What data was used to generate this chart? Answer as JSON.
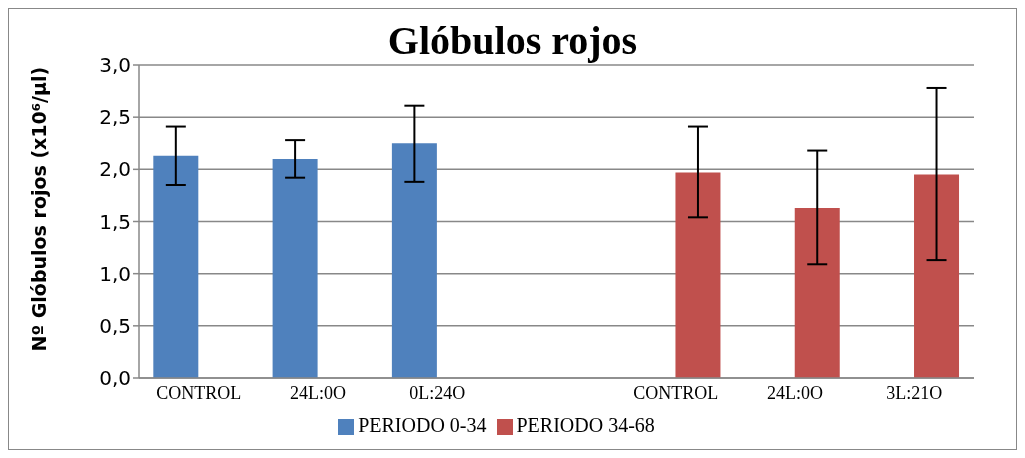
{
  "chart_data": {
    "type": "bar",
    "title": "Glóbulos rojos",
    "ylabel": "Nº Glóbulos rojos (x10⁶/µl)",
    "categories": [
      "CONTROL",
      "24L:0O",
      "0L:24O",
      null,
      "CONTROL",
      "24L:0O",
      "3L:21O"
    ],
    "series": [
      {
        "name": "PERIODO 0-34",
        "color": "#4f81bd",
        "values": [
          2.13,
          2.1,
          2.25,
          null,
          null,
          null,
          null
        ],
        "errors": [
          [
            1.85,
            2.41
          ],
          [
            1.92,
            2.28
          ],
          [
            1.88,
            2.61
          ],
          null,
          null,
          null,
          null
        ]
      },
      {
        "name": "PERIODO 34-68",
        "color": "#c0504d",
        "values": [
          null,
          null,
          null,
          null,
          1.97,
          1.63,
          1.95
        ],
        "errors": [
          null,
          null,
          null,
          null,
          [
            1.54,
            2.41
          ],
          [
            1.09,
            2.18
          ],
          [
            1.13,
            2.78
          ]
        ]
      }
    ],
    "ylim": [
      0,
      3
    ],
    "yticks": [
      {
        "value": 0,
        "label": "0,0"
      },
      {
        "value": 0.5,
        "label": "0,5"
      },
      {
        "value": 1,
        "label": "1,0"
      },
      {
        "value": 1.5,
        "label": "1,5"
      },
      {
        "value": 2,
        "label": "2,0"
      },
      {
        "value": 2.5,
        "label": "2,5"
      },
      {
        "value": 3,
        "label": "3,0"
      }
    ],
    "grid": "y",
    "legend": "bottom"
  }
}
